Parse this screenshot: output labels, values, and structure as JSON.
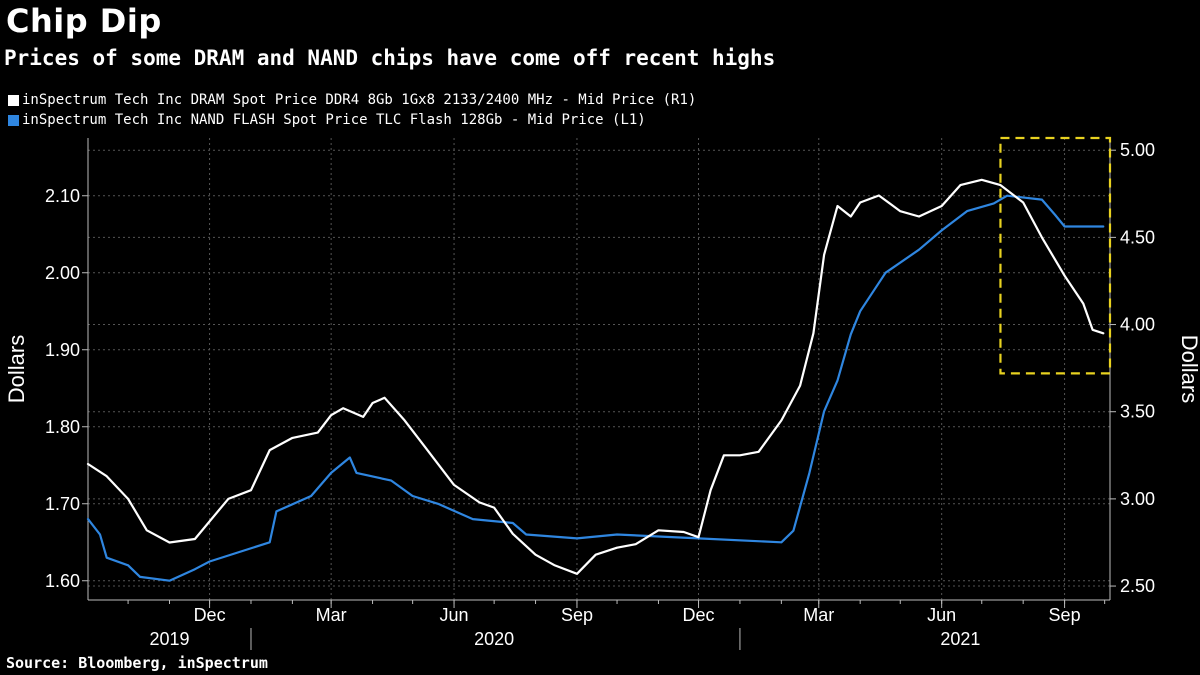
{
  "header": {
    "title": "Chip Dip",
    "subtitle": "Prices of some DRAM and NAND chips have come off recent highs"
  },
  "footer": {
    "source": "Source: Bloomberg, inSpectrum"
  },
  "colors": {
    "dram": "#ffffff",
    "nand": "#2f86e0",
    "highlight": "#e8d220",
    "grid": "#555555",
    "background": "#000000"
  },
  "chart_data": {
    "type": "line",
    "legend_placement": "top-left",
    "grid": true,
    "x_axis": {
      "range": [
        "2019-09-01",
        "2021-10-05"
      ],
      "month_ticks": [
        {
          "label": "Dec",
          "date": "2019-12-01"
        },
        {
          "label": "Mar",
          "date": "2020-03-01"
        },
        {
          "label": "Jun",
          "date": "2020-06-01"
        },
        {
          "label": "Sep",
          "date": "2020-09-01"
        },
        {
          "label": "Dec",
          "date": "2020-12-01"
        },
        {
          "label": "Mar",
          "date": "2021-03-01"
        },
        {
          "label": "Jun",
          "date": "2021-06-01"
        },
        {
          "label": "Sep",
          "date": "2021-09-01"
        }
      ],
      "years": [
        {
          "label": "2019",
          "date": "2019-11-01"
        },
        {
          "label": "2020",
          "date": "2020-07-01"
        },
        {
          "label": "2021",
          "date": "2021-06-15"
        }
      ],
      "year_dividers": [
        "2020-01-01",
        "2021-01-01"
      ]
    },
    "y_left": {
      "label": "Dollars",
      "range": [
        1.575,
        2.175
      ],
      "ticks": [
        "1.60",
        "1.70",
        "1.80",
        "1.90",
        "2.00",
        "2.10"
      ]
    },
    "y_right": {
      "label": "Dollars",
      "range": [
        2.42,
        5.07
      ],
      "ticks": [
        "2.50",
        "3.00",
        "3.50",
        "4.00",
        "4.50",
        "5.00"
      ]
    },
    "series": [
      {
        "name": "inSpectrum Tech Inc DRAM Spot Price DDR4 8Gb 1Gx8 2133/2400 MHz - Mid Price (R1)",
        "axis": "right",
        "points": [
          [
            "2019-09-01",
            3.2
          ],
          [
            "2019-09-15",
            3.13
          ],
          [
            "2019-10-01",
            3.0
          ],
          [
            "2019-10-15",
            2.82
          ],
          [
            "2019-11-01",
            2.75
          ],
          [
            "2019-11-20",
            2.77
          ],
          [
            "2019-12-15",
            3.0
          ],
          [
            "2020-01-01",
            3.05
          ],
          [
            "2020-01-15",
            3.28
          ],
          [
            "2020-02-01",
            3.35
          ],
          [
            "2020-02-20",
            3.38
          ],
          [
            "2020-03-01",
            3.48
          ],
          [
            "2020-03-10",
            3.52
          ],
          [
            "2020-03-25",
            3.47
          ],
          [
            "2020-04-01",
            3.55
          ],
          [
            "2020-04-10",
            3.58
          ],
          [
            "2020-04-25",
            3.45
          ],
          [
            "2020-05-10",
            3.3
          ],
          [
            "2020-06-01",
            3.08
          ],
          [
            "2020-06-20",
            2.98
          ],
          [
            "2020-07-01",
            2.95
          ],
          [
            "2020-07-15",
            2.8
          ],
          [
            "2020-08-01",
            2.68
          ],
          [
            "2020-08-15",
            2.62
          ],
          [
            "2020-09-01",
            2.57
          ],
          [
            "2020-09-15",
            2.68
          ],
          [
            "2020-10-01",
            2.72
          ],
          [
            "2020-10-15",
            2.74
          ],
          [
            "2020-11-01",
            2.82
          ],
          [
            "2020-11-20",
            2.81
          ],
          [
            "2020-12-01",
            2.78
          ],
          [
            "2020-12-10",
            3.05
          ],
          [
            "2020-12-20",
            3.25
          ],
          [
            "2021-01-01",
            3.25
          ],
          [
            "2021-01-15",
            3.27
          ],
          [
            "2021-02-01",
            3.45
          ],
          [
            "2021-02-15",
            3.65
          ],
          [
            "2021-02-25",
            3.95
          ],
          [
            "2021-03-05",
            4.4
          ],
          [
            "2021-03-15",
            4.68
          ],
          [
            "2021-03-25",
            4.62
          ],
          [
            "2021-04-01",
            4.7
          ],
          [
            "2021-04-15",
            4.74
          ],
          [
            "2021-05-01",
            4.65
          ],
          [
            "2021-05-15",
            4.62
          ],
          [
            "2021-06-01",
            4.68
          ],
          [
            "2021-06-15",
            4.8
          ],
          [
            "2021-07-01",
            4.83
          ],
          [
            "2021-07-15",
            4.8
          ],
          [
            "2021-08-01",
            4.7
          ],
          [
            "2021-08-15",
            4.5
          ],
          [
            "2021-09-01",
            4.28
          ],
          [
            "2021-09-15",
            4.12
          ],
          [
            "2021-09-22",
            3.97
          ],
          [
            "2021-09-30",
            3.95
          ]
        ]
      },
      {
        "name": "inSpectrum Tech Inc NAND FLASH Spot Price TLC Flash 128Gb - Mid Price (L1)",
        "axis": "left",
        "points": [
          [
            "2019-09-01",
            1.68
          ],
          [
            "2019-09-10",
            1.66
          ],
          [
            "2019-09-15",
            1.63
          ],
          [
            "2019-10-01",
            1.62
          ],
          [
            "2019-10-10",
            1.605
          ],
          [
            "2019-11-01",
            1.6
          ],
          [
            "2019-11-20",
            1.615
          ],
          [
            "2019-12-01",
            1.625
          ],
          [
            "2020-01-15",
            1.65
          ],
          [
            "2020-01-20",
            1.69
          ],
          [
            "2020-02-15",
            1.71
          ],
          [
            "2020-03-01",
            1.74
          ],
          [
            "2020-03-15",
            1.76
          ],
          [
            "2020-03-20",
            1.74
          ],
          [
            "2020-04-15",
            1.73
          ],
          [
            "2020-05-01",
            1.71
          ],
          [
            "2020-05-20",
            1.7
          ],
          [
            "2020-06-15",
            1.68
          ],
          [
            "2020-07-15",
            1.675
          ],
          [
            "2020-07-25",
            1.66
          ],
          [
            "2020-09-01",
            1.655
          ],
          [
            "2020-10-01",
            1.66
          ],
          [
            "2020-12-01",
            1.655
          ],
          [
            "2021-02-01",
            1.65
          ],
          [
            "2021-02-10",
            1.665
          ],
          [
            "2021-02-22",
            1.74
          ],
          [
            "2021-03-05",
            1.82
          ],
          [
            "2021-03-15",
            1.86
          ],
          [
            "2021-03-25",
            1.92
          ],
          [
            "2021-04-01",
            1.95
          ],
          [
            "2021-04-20",
            2.0
          ],
          [
            "2021-05-15",
            2.03
          ],
          [
            "2021-06-01",
            2.055
          ],
          [
            "2021-06-20",
            2.08
          ],
          [
            "2021-07-10",
            2.09
          ],
          [
            "2021-07-20",
            2.1
          ],
          [
            "2021-08-15",
            2.095
          ],
          [
            "2021-08-25",
            2.075
          ],
          [
            "2021-09-01",
            2.06
          ],
          [
            "2021-09-30",
            2.06
          ]
        ]
      }
    ],
    "annotations": [
      {
        "type": "dashed-box",
        "x_range": [
          "2021-07-15",
          "2021-10-05"
        ],
        "right_axis_range": [
          3.72,
          5.07
        ]
      }
    ]
  }
}
